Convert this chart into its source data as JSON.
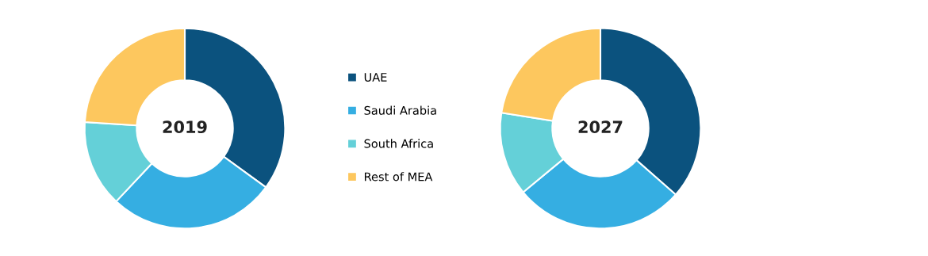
{
  "chart_data": [
    {
      "type": "donut",
      "title": "2019",
      "categories": [
        "UAE",
        "Saudi Arabia",
        "South Africa",
        "Rest of MEA"
      ],
      "values": [
        35,
        27,
        14,
        24
      ],
      "colors": [
        "#0b527e",
        "#35aee2",
        "#64d0d8",
        "#fdc75e"
      ],
      "legend": "right"
    },
    {
      "type": "donut",
      "title": "2027",
      "values": [
        36.5,
        27.5,
        13.5,
        22.5
      ],
      "colors": [
        "#0b527e",
        "#35aee2",
        "#64d0d8",
        "#fdc75e"
      ]
    }
  ]
}
